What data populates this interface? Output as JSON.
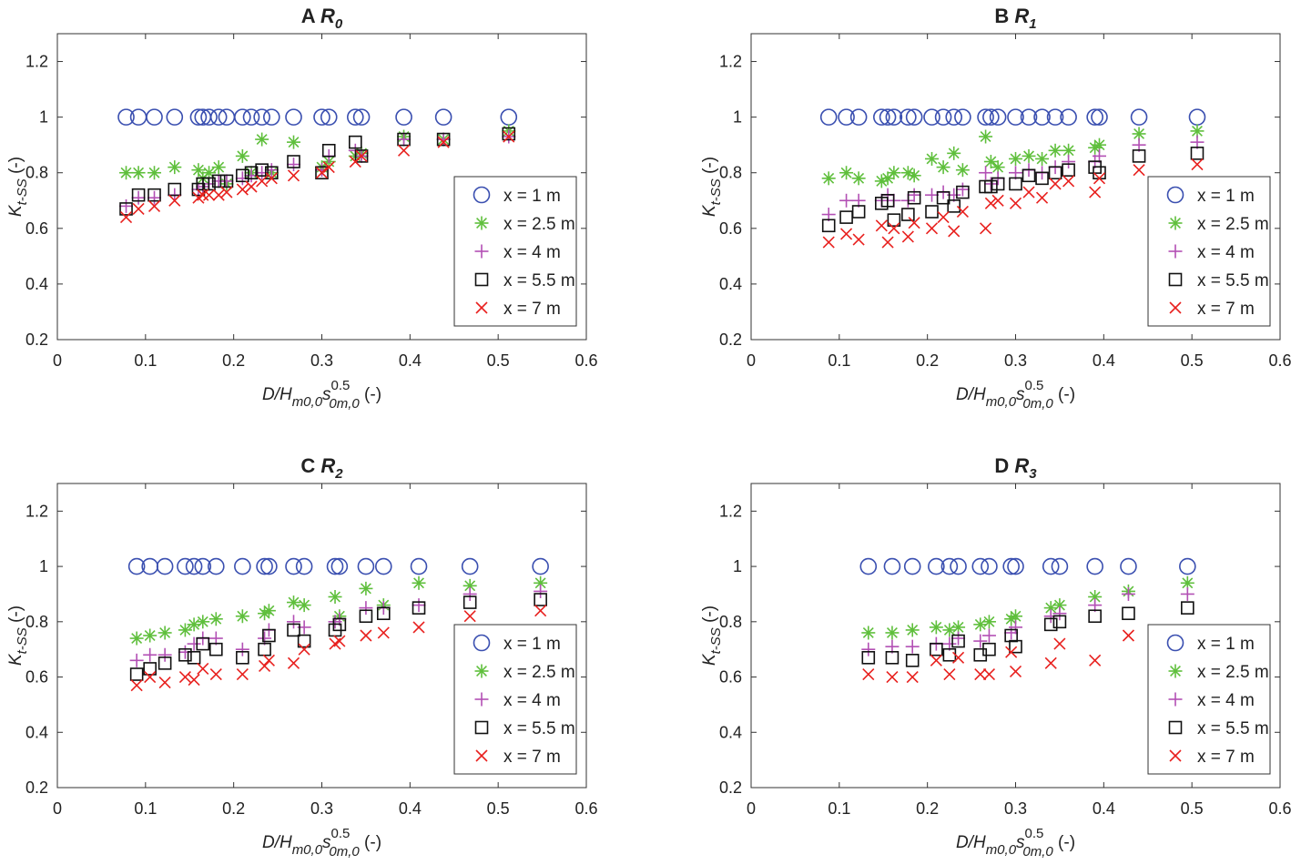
{
  "colors": {
    "x1": "#3a4fb0",
    "x2_5": "#5fbf3c",
    "x4": "#b24fb4",
    "x5_5": "#111111",
    "x7": "#e8201e",
    "axes": "#333333"
  },
  "axis_text": {
    "xlabel_main": "D/H",
    "xlabel_sub1": "m0,0",
    "xlabel_s": "s",
    "xlabel_sub2": "0m,0",
    "xlabel_sup": "0.5",
    "xlabel_unit": " (-)",
    "ylabel_main": "K",
    "ylabel_sub": "t-SS",
    "ylabel_unit": " (-)"
  },
  "chart_data": [
    {
      "type": "scatter",
      "panel_letter": "A",
      "title_var": "R",
      "title_sub": "0",
      "xlim": [
        0,
        0.6
      ],
      "ylim": [
        0.2,
        1.3
      ],
      "xticks": [
        "0",
        "0.1",
        "0.2",
        "0.3",
        "0.4",
        "0.5",
        "0.6"
      ],
      "yticks": [
        "0.2",
        "0.4",
        "0.6",
        "0.8",
        "1",
        "1.2"
      ],
      "legend": [
        "x = 1 m",
        "x = 2.5 m",
        "x = 4 m",
        "x = 5.5 m",
        "x = 7 m"
      ],
      "x": [
        0.078,
        0.092,
        0.11,
        0.133,
        0.16,
        0.165,
        0.172,
        0.183,
        0.192,
        0.21,
        0.22,
        0.232,
        0.243,
        0.268,
        0.3,
        0.308,
        0.338,
        0.345,
        0.393,
        0.438,
        0.512
      ],
      "series": [
        {
          "name": "x = 1 m",
          "y": [
            1,
            1,
            1,
            1,
            1,
            1,
            1,
            1,
            1,
            1,
            1,
            1,
            1,
            1,
            1,
            1,
            1,
            1,
            1,
            1,
            1
          ]
        },
        {
          "name": "x = 2.5 m",
          "y": [
            0.8,
            0.8,
            0.8,
            0.82,
            0.81,
            0.78,
            0.8,
            0.82,
            0.76,
            0.86,
            0.8,
            0.92,
            0.8,
            0.91,
            0.82,
            0.84,
            0.86,
            0.87,
            0.93,
            0.92,
            0.95
          ]
        },
        {
          "name": "x = 4 m",
          "y": [
            0.68,
            0.71,
            0.71,
            0.72,
            0.74,
            0.75,
            0.76,
            0.77,
            0.77,
            0.78,
            0.79,
            0.8,
            0.81,
            0.83,
            0.81,
            0.86,
            0.88,
            0.86,
            0.92,
            0.92,
            0.93
          ]
        },
        {
          "name": "x = 5.5 m",
          "y": [
            0.67,
            0.72,
            0.72,
            0.74,
            0.74,
            0.76,
            0.76,
            0.77,
            0.77,
            0.79,
            0.8,
            0.81,
            0.8,
            0.84,
            0.8,
            0.88,
            0.91,
            0.86,
            0.92,
            0.92,
            0.94
          ]
        },
        {
          "name": "x = 7 m",
          "y": [
            0.64,
            0.67,
            0.68,
            0.7,
            0.71,
            0.72,
            0.72,
            0.72,
            0.73,
            0.74,
            0.75,
            0.77,
            0.78,
            0.79,
            0.8,
            0.82,
            0.84,
            0.86,
            0.88,
            0.91,
            0.93
          ]
        }
      ]
    },
    {
      "type": "scatter",
      "panel_letter": "B",
      "title_var": "R",
      "title_sub": "1",
      "xlim": [
        0,
        0.6
      ],
      "ylim": [
        0.2,
        1.3
      ],
      "xticks": [
        "0",
        "0.1",
        "0.2",
        "0.3",
        "0.4",
        "0.5",
        "0.6"
      ],
      "yticks": [
        "0.2",
        "0.4",
        "0.6",
        "0.8",
        "1",
        "1.2"
      ],
      "legend": [
        "x = 1 m",
        "x = 2.5 m",
        "x = 4 m",
        "x = 5.5 m",
        "x = 7 m"
      ],
      "x": [
        0.088,
        0.108,
        0.122,
        0.148,
        0.155,
        0.162,
        0.178,
        0.185,
        0.205,
        0.218,
        0.23,
        0.24,
        0.266,
        0.272,
        0.28,
        0.3,
        0.315,
        0.33,
        0.345,
        0.36,
        0.39,
        0.395,
        0.44,
        0.506
      ],
      "series": [
        {
          "name": "x = 1 m",
          "y": [
            1,
            1,
            1,
            1,
            1,
            1,
            1,
            1,
            1,
            1,
            1,
            1,
            1,
            1,
            1,
            1,
            1,
            1,
            1,
            1,
            1,
            1,
            1,
            1
          ]
        },
        {
          "name": "x = 2.5 m",
          "y": [
            0.78,
            0.8,
            0.78,
            0.77,
            0.78,
            0.8,
            0.8,
            0.79,
            0.85,
            0.82,
            0.87,
            0.81,
            0.93,
            0.84,
            0.82,
            0.85,
            0.86,
            0.85,
            0.88,
            0.88,
            0.89,
            0.9,
            0.94,
            0.95
          ]
        },
        {
          "name": "x = 4 m",
          "y": [
            0.65,
            0.7,
            0.7,
            0.7,
            0.72,
            0.7,
            0.7,
            0.72,
            0.72,
            0.73,
            0.72,
            0.74,
            0.8,
            0.76,
            0.78,
            0.8,
            0.81,
            0.8,
            0.82,
            0.84,
            0.84,
            0.86,
            0.9,
            0.91
          ]
        },
        {
          "name": "x = 5.5 m",
          "y": [
            0.61,
            0.64,
            0.66,
            0.69,
            0.7,
            0.63,
            0.65,
            0.71,
            0.66,
            0.71,
            0.68,
            0.73,
            0.75,
            0.75,
            0.76,
            0.76,
            0.79,
            0.78,
            0.8,
            0.81,
            0.82,
            0.8,
            0.86,
            0.87
          ]
        },
        {
          "name": "x = 7 m",
          "y": [
            0.55,
            0.58,
            0.56,
            0.61,
            0.55,
            0.6,
            0.57,
            0.62,
            0.6,
            0.64,
            0.59,
            0.66,
            0.6,
            0.69,
            0.7,
            0.69,
            0.73,
            0.71,
            0.76,
            0.77,
            0.73,
            0.78,
            0.81,
            0.83
          ]
        }
      ]
    },
    {
      "type": "scatter",
      "panel_letter": "C",
      "title_var": "R",
      "title_sub": "2",
      "xlim": [
        0,
        0.6
      ],
      "ylim": [
        0.2,
        1.3
      ],
      "xticks": [
        "0",
        "0.1",
        "0.2",
        "0.3",
        "0.4",
        "0.5",
        "0.6"
      ],
      "yticks": [
        "0.2",
        "0.4",
        "0.6",
        "0.8",
        "1",
        "1.2"
      ],
      "legend": [
        "x = 1 m",
        "x = 2.5 m",
        "x = 4 m",
        "x = 5.5 m",
        "x = 7 m"
      ],
      "x": [
        0.09,
        0.105,
        0.122,
        0.145,
        0.155,
        0.165,
        0.18,
        0.21,
        0.235,
        0.24,
        0.268,
        0.28,
        0.315,
        0.32,
        0.35,
        0.37,
        0.41,
        0.468,
        0.548
      ],
      "series": [
        {
          "name": "x = 1 m",
          "y": [
            1,
            1,
            1,
            1,
            1,
            1,
            1,
            1,
            1,
            1,
            1,
            1,
            1,
            1,
            1,
            1,
            1,
            1,
            1
          ]
        },
        {
          "name": "x = 2.5 m",
          "y": [
            0.74,
            0.75,
            0.76,
            0.77,
            0.79,
            0.8,
            0.81,
            0.82,
            0.83,
            0.84,
            0.87,
            0.86,
            0.89,
            0.82,
            0.92,
            0.86,
            0.94,
            0.93,
            0.94
          ]
        },
        {
          "name": "x = 4 m",
          "y": [
            0.66,
            0.68,
            0.68,
            0.69,
            0.72,
            0.74,
            0.74,
            0.7,
            0.74,
            0.77,
            0.8,
            0.78,
            0.8,
            0.81,
            0.85,
            0.85,
            0.86,
            0.9,
            0.91
          ]
        },
        {
          "name": "x = 5.5 m",
          "y": [
            0.61,
            0.63,
            0.65,
            0.68,
            0.67,
            0.72,
            0.7,
            0.67,
            0.7,
            0.75,
            0.77,
            0.73,
            0.77,
            0.79,
            0.82,
            0.83,
            0.85,
            0.87,
            0.88
          ]
        },
        {
          "name": "x = 7 m",
          "y": [
            0.57,
            0.6,
            0.58,
            0.6,
            0.59,
            0.63,
            0.61,
            0.61,
            0.64,
            0.66,
            0.65,
            0.7,
            0.72,
            0.73,
            0.75,
            0.76,
            0.78,
            0.82,
            0.84
          ]
        }
      ]
    },
    {
      "type": "scatter",
      "panel_letter": "D",
      "title_var": "R",
      "title_sub": "3",
      "xlim": [
        0,
        0.6
      ],
      "ylim": [
        0.2,
        1.3
      ],
      "xticks": [
        "0",
        "0.1",
        "0.2",
        "0.3",
        "0.4",
        "0.5",
        "0.6"
      ],
      "yticks": [
        "0.2",
        "0.4",
        "0.6",
        "0.8",
        "1",
        "1.2"
      ],
      "legend": [
        "x = 1 m",
        "x = 2.5 m",
        "x = 4 m",
        "x = 5.5 m",
        "x = 7 m"
      ],
      "x": [
        0.133,
        0.16,
        0.183,
        0.21,
        0.225,
        0.235,
        0.26,
        0.27,
        0.295,
        0.3,
        0.34,
        0.35,
        0.39,
        0.428,
        0.495
      ],
      "series": [
        {
          "name": "x = 1 m",
          "y": [
            1,
            1,
            1,
            1,
            1,
            1,
            1,
            1,
            1,
            1,
            1,
            1,
            1,
            1,
            1
          ]
        },
        {
          "name": "x = 2.5 m",
          "y": [
            0.76,
            0.76,
            0.77,
            0.78,
            0.77,
            0.78,
            0.79,
            0.8,
            0.81,
            0.82,
            0.85,
            0.86,
            0.89,
            0.91,
            0.94
          ]
        },
        {
          "name": "x = 4 m",
          "y": [
            0.7,
            0.71,
            0.71,
            0.72,
            0.72,
            0.74,
            0.73,
            0.75,
            0.76,
            0.78,
            0.82,
            0.83,
            0.86,
            0.9,
            0.9
          ]
        },
        {
          "name": "x = 5.5 m",
          "y": [
            0.67,
            0.67,
            0.66,
            0.7,
            0.68,
            0.73,
            0.68,
            0.7,
            0.75,
            0.71,
            0.79,
            0.8,
            0.82,
            0.83,
            0.85
          ]
        },
        {
          "name": "x = 7 m",
          "y": [
            0.61,
            0.6,
            0.6,
            0.66,
            0.61,
            0.67,
            0.61,
            0.61,
            0.69,
            0.62,
            0.65,
            0.72,
            0.66,
            0.75,
            0.73
          ]
        }
      ]
    }
  ]
}
